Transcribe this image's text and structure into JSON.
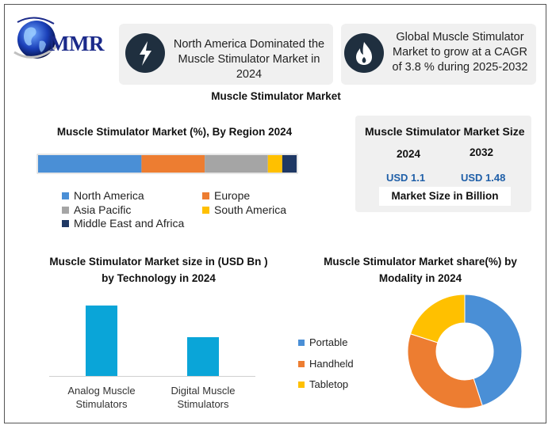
{
  "brand": {
    "logo_text": "MMR"
  },
  "cards": [
    {
      "text": "North America Dominated the Muscle Stimulator Market in 2024",
      "icon": "lightning-icon"
    },
    {
      "text": "Global Muscle Stimulator Market to grow at a CAGR of 3.8 % during 2025-2032",
      "icon": "flame-icon"
    }
  ],
  "main_title": "Muscle Stimulator Market",
  "market_size": {
    "title": "Muscle Stimulator Market Size",
    "year_a": "2024",
    "year_b": "2032",
    "value_a": "USD 1.1",
    "value_b": "USD 1.48",
    "unit_label": "Market Size in Billion"
  },
  "chart_data": [
    {
      "type": "bar",
      "orientation": "horizontal-stacked",
      "title": "Muscle Stimulator Market (%), By Region 2024",
      "unit": "%",
      "series": [
        {
          "name": "North America",
          "value": 36,
          "color": "#4a8fd6"
        },
        {
          "name": "Europe",
          "value": 22,
          "color": "#ed7d31"
        },
        {
          "name": "Asia Pacific",
          "value": 22,
          "color": "#a5a5a5"
        },
        {
          "name": "South America",
          "value": 5,
          "color": "#ffc000"
        },
        {
          "name": "Middle East and Africa",
          "value": 5,
          "color": "#1f3864"
        }
      ],
      "legend_position": "bottom"
    },
    {
      "type": "bar",
      "title": "Muscle Stimulator Market size in (USD Bn ) by Technology in 2024",
      "categories": [
        "Analog Muscle Stimulators",
        "Digital Muscle Stimulators"
      ],
      "values": [
        0.9,
        0.5
      ],
      "ylim": [
        0,
        1.0
      ],
      "color": "#0aa5d8",
      "grid": false
    },
    {
      "type": "pie",
      "subtype": "donut",
      "title": "Muscle Stimulator Market share(%)  by Modality in 2024",
      "series": [
        {
          "name": "Portable",
          "value": 45,
          "color": "#4a8fd6"
        },
        {
          "name": "Handheld",
          "value": 35,
          "color": "#ed7d31"
        },
        {
          "name": "Tabletop",
          "value": 20,
          "color": "#ffc000"
        }
      ],
      "legend_position": "left"
    }
  ]
}
